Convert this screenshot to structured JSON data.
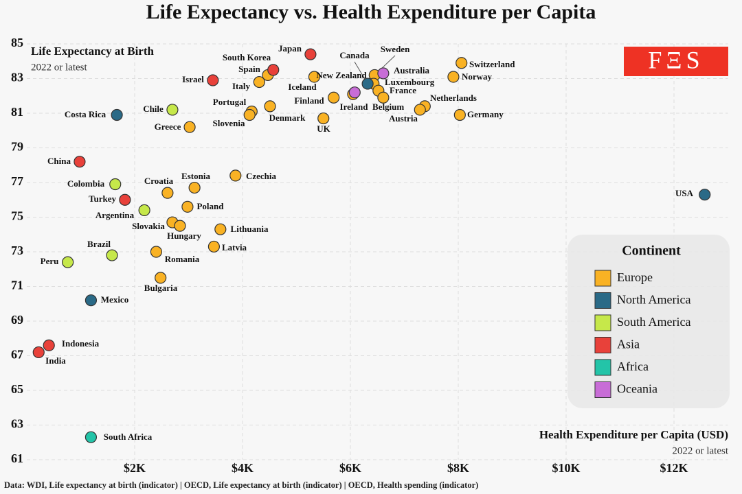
{
  "chart_data": {
    "type": "scatter",
    "title": "Life Expectancy vs. Health Expenditure per Capita",
    "y_label": "Life Expectancy at Birth",
    "y_subtitle": "2022 or latest",
    "x_label": "Health Expenditure per Capita (USD)",
    "x_subtitle": "2022 or latest",
    "source": "Data: WDI, Life expectancy at birth (indicator) | OECD, Life expectancy at birth (indicator) | OECD, Health spending (indicator)",
    "logo": "FΞS",
    "legend_title": "Continent",
    "legend_position": "lower right",
    "grid": true,
    "xlim": [
      0,
      13000
    ],
    "ylim": [
      61,
      85
    ],
    "xticks": [
      {
        "value": 2000,
        "label": "$2K"
      },
      {
        "value": 4000,
        "label": "$4K"
      },
      {
        "value": 6000,
        "label": "$6K"
      },
      {
        "value": 8000,
        "label": "$8K"
      },
      {
        "value": 10000,
        "label": "$10K"
      },
      {
        "value": 12000,
        "label": "$12K"
      }
    ],
    "yticks": [
      61,
      63,
      65,
      67,
      69,
      71,
      73,
      75,
      77,
      79,
      81,
      83,
      85
    ],
    "series": [
      {
        "name": "Europe",
        "color": "#f9b224",
        "labels": [
          "Switzerland",
          "Norway",
          "Germany",
          "Netherlands",
          "Austria",
          "Sweden",
          "Luxembourg",
          "France",
          "Belgium",
          "Iceland",
          "Ireland",
          "Finland",
          "UK",
          "Spain",
          "Italy",
          "Portugal",
          "Slovenia",
          "Denmark",
          "Greece",
          "Czechia",
          "Estonia",
          "Croatia",
          "Poland",
          "Slovakia",
          "Hungary",
          "Lithuania",
          "Latvia",
          "Romania",
          "Bulgaria"
        ],
        "x": [
          8060,
          7910,
          8030,
          7380,
          7290,
          6450,
          6430,
          6520,
          6610,
          5330,
          6050,
          5690,
          5500,
          4470,
          4310,
          4170,
          4130,
          4510,
          3020,
          3870,
          3110,
          2610,
          2980,
          2700,
          2840,
          3590,
          3470,
          2400,
          2480
        ],
        "values": [
          83.9,
          83.1,
          80.9,
          81.4,
          81.2,
          83.2,
          82.7,
          82.3,
          81.9,
          83.1,
          82.1,
          81.9,
          80.7,
          83.2,
          82.8,
          81.1,
          80.9,
          81.4,
          80.2,
          77.4,
          76.7,
          76.4,
          75.6,
          74.7,
          74.5,
          74.3,
          73.3,
          73.0,
          71.5
        ]
      },
      {
        "name": "North America",
        "color": "#2a6a87",
        "labels": [
          "USA",
          "Costa Rica",
          "Mexico",
          "Canada"
        ],
        "x": [
          12570,
          1670,
          1190,
          6320
        ],
        "values": [
          76.3,
          80.9,
          70.2,
          82.7
        ]
      },
      {
        "name": "South America",
        "color": "#c6e84a",
        "labels": [
          "Chile",
          "Colombia",
          "Argentina",
          "Brazil",
          "Peru"
        ],
        "x": [
          2700,
          1640,
          2180,
          1580,
          760
        ],
        "values": [
          81.2,
          76.9,
          75.4,
          72.8,
          72.4
        ]
      },
      {
        "name": "Asia",
        "color": "#e8413a",
        "labels": [
          "Japan",
          "South Korea",
          "Israel",
          "China",
          "Turkey",
          "Indonesia",
          "India"
        ],
        "x": [
          5260,
          4570,
          3450,
          980,
          1820,
          410,
          220
        ],
        "values": [
          84.4,
          83.5,
          82.9,
          78.2,
          76.0,
          67.6,
          67.2
        ]
      },
      {
        "name": "Africa",
        "color": "#23c4a8",
        "labels": [
          "South Africa"
        ],
        "x": [
          1190
        ],
        "values": [
          62.3
        ]
      },
      {
        "name": "Oceania",
        "color": "#c86dd7",
        "labels": [
          "Australia",
          "New Zealand"
        ],
        "x": [
          6610,
          6080
        ],
        "values": [
          83.3,
          82.2
        ]
      }
    ]
  }
}
